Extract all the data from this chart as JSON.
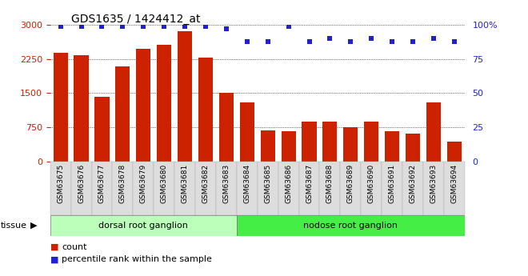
{
  "title": "GDS1635 / 1424412_at",
  "categories": [
    "GSM63675",
    "GSM63676",
    "GSM63677",
    "GSM63678",
    "GSM63679",
    "GSM63680",
    "GSM63681",
    "GSM63682",
    "GSM63683",
    "GSM63684",
    "GSM63685",
    "GSM63686",
    "GSM63687",
    "GSM63688",
    "GSM63689",
    "GSM63690",
    "GSM63691",
    "GSM63692",
    "GSM63693",
    "GSM63694"
  ],
  "counts": [
    2380,
    2340,
    1420,
    2090,
    2480,
    2560,
    2860,
    2280,
    1510,
    1290,
    690,
    670,
    870,
    870,
    750,
    870,
    660,
    620,
    1290,
    430
  ],
  "percentiles": [
    99,
    99,
    99,
    99,
    99,
    99,
    99,
    99,
    97,
    88,
    88,
    99,
    88,
    90,
    88,
    90,
    88,
    88,
    90,
    88
  ],
  "group1_label": "dorsal root ganglion",
  "group2_label": "nodose root ganglion",
  "group1_count": 9,
  "group2_count": 11,
  "group1_color": "#bbffbb",
  "group2_color": "#44ee44",
  "bar_color": "#cc2200",
  "dot_color": "#2222cc",
  "left_yticks": [
    0,
    750,
    1500,
    2250,
    3000
  ],
  "right_yticks": [
    0,
    25,
    50,
    75,
    100
  ],
  "ylim_left": [
    0,
    3000
  ],
  "ylim_right": [
    0,
    100
  ],
  "tissue_label": "tissue",
  "legend_count": "count",
  "legend_pct": "percentile rank within the sample",
  "xtick_bg": "#dddddd",
  "plot_bg": "#ffffff"
}
